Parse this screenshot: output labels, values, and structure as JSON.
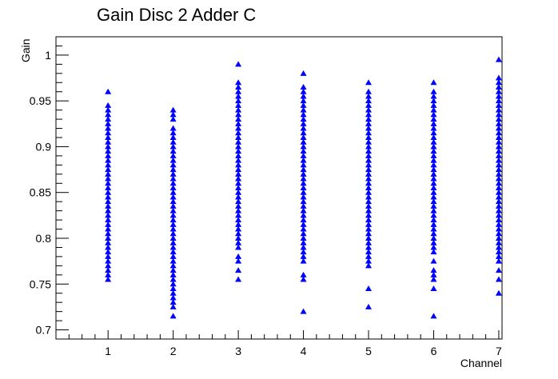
{
  "chart_data": {
    "type": "scatter",
    "title": "Gain Disc 2 Adder C",
    "xlabel": "Channel",
    "ylabel": "Gain",
    "xlim": [
      0.2,
      7.05
    ],
    "ylim": [
      0.69,
      1.02
    ],
    "x_ticks": [
      1,
      2,
      3,
      4,
      5,
      6,
      7
    ],
    "y_ticks": [
      0.7,
      0.75,
      0.8,
      0.85,
      0.9,
      0.95,
      1
    ],
    "y_tick_labels": [
      "0.7",
      "0.75",
      "0.8",
      "0.85",
      "0.9",
      "0.95",
      "1"
    ],
    "grid": false,
    "marker": "triangle-up",
    "marker_color": "#0000ff",
    "series": [
      {
        "x": 1,
        "values": [
          0.755,
          0.76,
          0.765,
          0.77,
          0.775,
          0.78,
          0.785,
          0.79,
          0.795,
          0.8,
          0.805,
          0.81,
          0.815,
          0.82,
          0.825,
          0.83,
          0.835,
          0.84,
          0.845,
          0.85,
          0.855,
          0.86,
          0.865,
          0.87,
          0.875,
          0.88,
          0.885,
          0.89,
          0.895,
          0.9,
          0.905,
          0.91,
          0.915,
          0.92,
          0.925,
          0.93,
          0.935,
          0.94,
          0.945,
          0.96
        ]
      },
      {
        "x": 2,
        "values": [
          0.715,
          0.725,
          0.73,
          0.735,
          0.74,
          0.745,
          0.75,
          0.755,
          0.76,
          0.765,
          0.77,
          0.775,
          0.78,
          0.785,
          0.79,
          0.795,
          0.8,
          0.805,
          0.81,
          0.815,
          0.82,
          0.825,
          0.83,
          0.835,
          0.84,
          0.845,
          0.85,
          0.855,
          0.86,
          0.865,
          0.87,
          0.875,
          0.88,
          0.885,
          0.89,
          0.895,
          0.9,
          0.905,
          0.91,
          0.915,
          0.92,
          0.93,
          0.935,
          0.94
        ]
      },
      {
        "x": 3,
        "values": [
          0.755,
          0.765,
          0.775,
          0.78,
          0.79,
          0.795,
          0.8,
          0.805,
          0.81,
          0.815,
          0.82,
          0.825,
          0.83,
          0.835,
          0.84,
          0.845,
          0.85,
          0.855,
          0.86,
          0.865,
          0.87,
          0.875,
          0.88,
          0.885,
          0.89,
          0.895,
          0.9,
          0.905,
          0.91,
          0.915,
          0.92,
          0.925,
          0.93,
          0.935,
          0.94,
          0.945,
          0.95,
          0.955,
          0.96,
          0.965,
          0.97,
          0.99
        ]
      },
      {
        "x": 4,
        "values": [
          0.72,
          0.755,
          0.76,
          0.775,
          0.78,
          0.785,
          0.79,
          0.795,
          0.8,
          0.805,
          0.81,
          0.815,
          0.82,
          0.825,
          0.83,
          0.835,
          0.84,
          0.845,
          0.85,
          0.855,
          0.86,
          0.865,
          0.87,
          0.875,
          0.88,
          0.885,
          0.89,
          0.895,
          0.9,
          0.905,
          0.91,
          0.915,
          0.92,
          0.925,
          0.93,
          0.935,
          0.94,
          0.945,
          0.95,
          0.955,
          0.96,
          0.965,
          0.98
        ]
      },
      {
        "x": 5,
        "values": [
          0.725,
          0.745,
          0.77,
          0.775,
          0.78,
          0.785,
          0.79,
          0.795,
          0.8,
          0.805,
          0.81,
          0.815,
          0.82,
          0.825,
          0.83,
          0.835,
          0.84,
          0.845,
          0.85,
          0.855,
          0.86,
          0.865,
          0.87,
          0.875,
          0.88,
          0.885,
          0.89,
          0.895,
          0.9,
          0.905,
          0.91,
          0.915,
          0.92,
          0.925,
          0.93,
          0.935,
          0.94,
          0.945,
          0.95,
          0.955,
          0.96,
          0.97
        ]
      },
      {
        "x": 6,
        "values": [
          0.715,
          0.745,
          0.755,
          0.76,
          0.765,
          0.775,
          0.785,
          0.79,
          0.795,
          0.8,
          0.805,
          0.81,
          0.815,
          0.82,
          0.825,
          0.83,
          0.835,
          0.84,
          0.845,
          0.85,
          0.855,
          0.86,
          0.865,
          0.87,
          0.875,
          0.88,
          0.885,
          0.89,
          0.895,
          0.9,
          0.905,
          0.91,
          0.915,
          0.92,
          0.925,
          0.93,
          0.935,
          0.94,
          0.945,
          0.95,
          0.955,
          0.96,
          0.97
        ]
      },
      {
        "x": 7,
        "values": [
          0.74,
          0.755,
          0.765,
          0.775,
          0.78,
          0.785,
          0.79,
          0.795,
          0.8,
          0.805,
          0.81,
          0.815,
          0.82,
          0.825,
          0.83,
          0.835,
          0.84,
          0.845,
          0.85,
          0.855,
          0.86,
          0.865,
          0.87,
          0.875,
          0.88,
          0.885,
          0.89,
          0.895,
          0.9,
          0.905,
          0.91,
          0.915,
          0.92,
          0.925,
          0.93,
          0.935,
          0.94,
          0.945,
          0.95,
          0.955,
          0.96,
          0.965,
          0.97,
          0.975,
          0.995
        ]
      }
    ]
  }
}
